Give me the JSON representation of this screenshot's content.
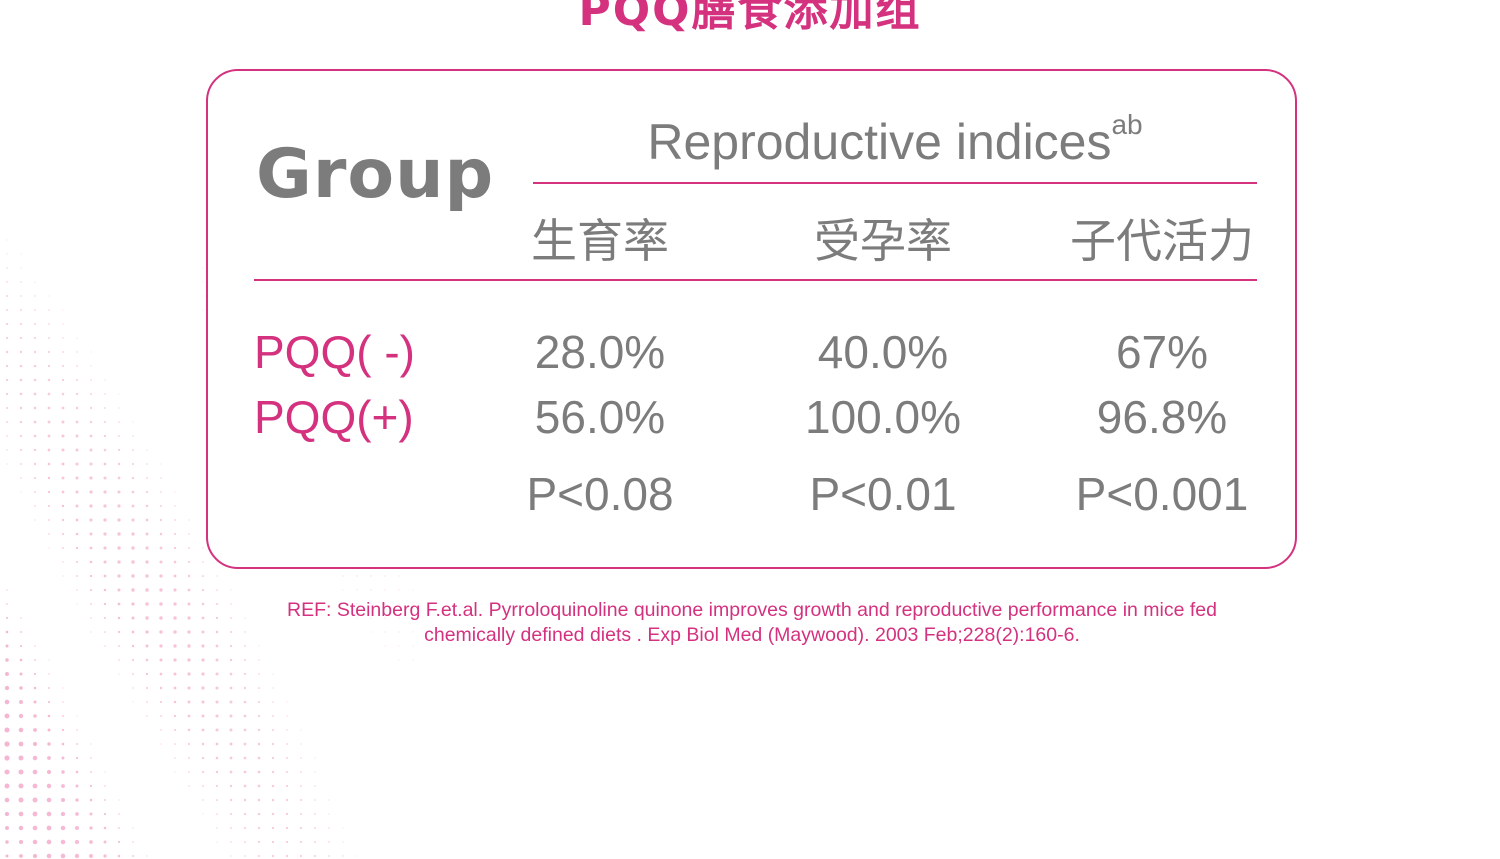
{
  "title": "PQQ膳食添加组",
  "colors": {
    "accent": "#d4317f",
    "text_gray": "#7c7c7c",
    "dot_pink": "#f3a9c9"
  },
  "table": {
    "group_label": "Group",
    "indices_header": "Reproductive indices",
    "indices_superscript": "ab",
    "columns": [
      "生育率",
      "受孕率",
      "子代活力"
    ],
    "rows": [
      {
        "label": "PQQ( -)",
        "values": [
          "28.0%",
          "40.0%",
          "67%"
        ]
      },
      {
        "label": "PQQ(+)",
        "values": [
          "56.0%",
          "100.0%",
          "96.8%"
        ]
      }
    ],
    "p_values": [
      "P<0.08",
      "P<0.01",
      "P<0.001"
    ]
  },
  "reference": {
    "line1": "REF: Steinberg F.et.al. Pyrroloquinoline quinone improves growth and reproductive performance in mice fed",
    "line2": "chemically defined diets . Exp Biol Med (Maywood). 2003 Feb;228(2):160-6."
  }
}
